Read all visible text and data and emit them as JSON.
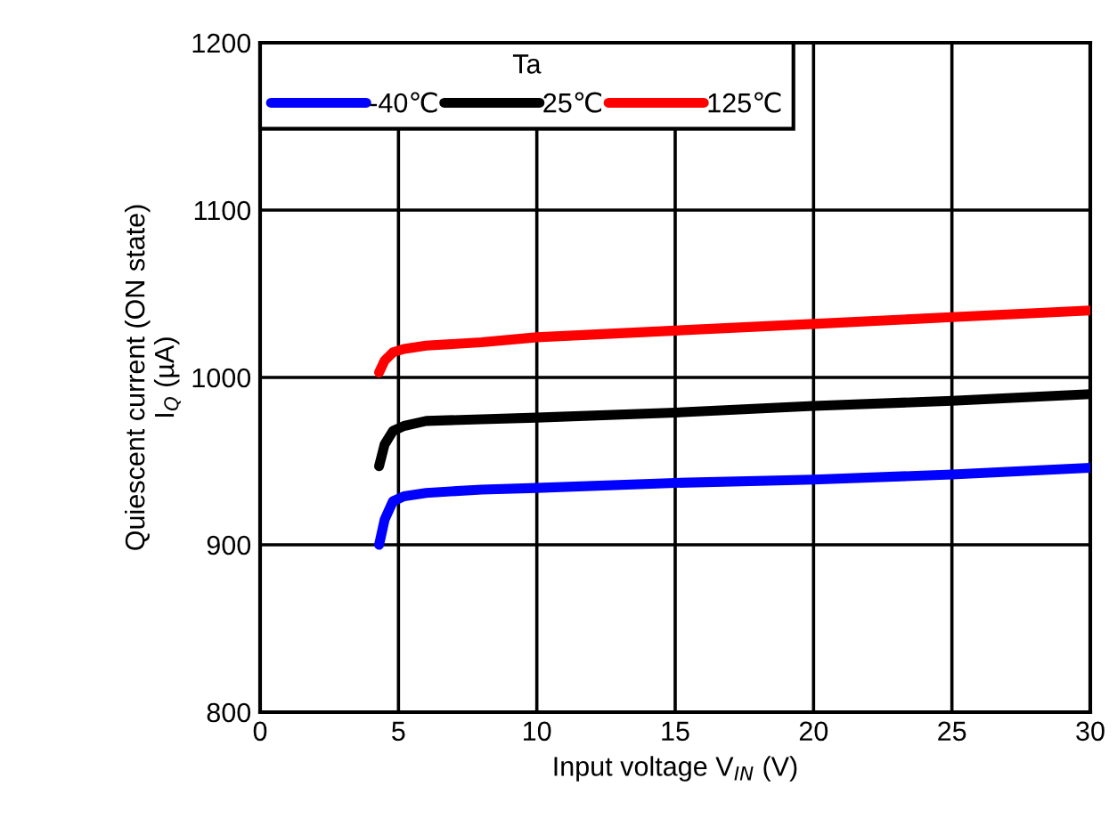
{
  "chart_data": {
    "type": "line",
    "xlabel": "Input voltage V$_{IN}$ (V)",
    "ylabel": "Quiescent current (ON state)\nI$_{Q}$ (µA)",
    "legend_title": "Ta",
    "legend": "top left",
    "grid": true,
    "line_style": "solid",
    "x": [
      4.3,
      4.5,
      4.8,
      5.2,
      6,
      8,
      10,
      15,
      20,
      25,
      30
    ],
    "series": [
      {
        "name": "-40℃",
        "color": "#0000ff",
        "values": [
          900,
          915,
          926,
          929,
          931,
          933,
          934,
          937,
          939,
          942,
          946
        ]
      },
      {
        "name": "25℃",
        "color": "#000000",
        "values": [
          947,
          960,
          968,
          971,
          974,
          975,
          976,
          979,
          983,
          986,
          990
        ]
      },
      {
        "name": "125℃",
        "color": "#ff0000",
        "values": [
          1003,
          1010,
          1015,
          1017,
          1019,
          1021,
          1024,
          1028,
          1032,
          1036,
          1040
        ]
      }
    ],
    "xlim": [
      0,
      30
    ],
    "xticks": [
      0,
      5,
      10,
      15,
      20,
      25,
      30
    ],
    "ylim": [
      800,
      1200
    ],
    "yticks": [
      800,
      900,
      1000,
      1100,
      1200
    ]
  }
}
